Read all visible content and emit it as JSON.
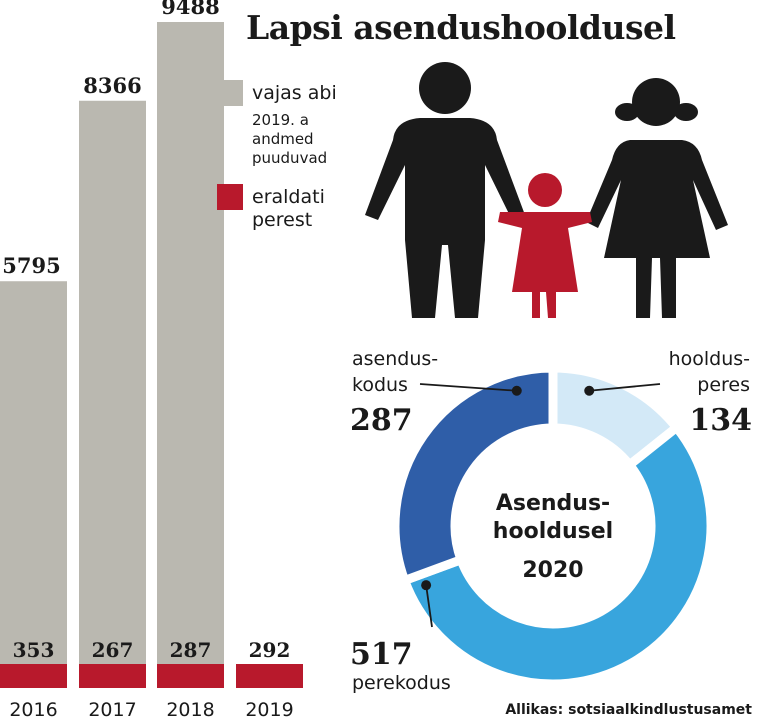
{
  "title": "Lapsi asendushooldusel",
  "legend": {
    "need_help": {
      "label": "vajas abi",
      "note": "2019. a andmed puuduvad",
      "color": "#bab8b0"
    },
    "removed": {
      "label": "eraldati perest",
      "color": "#b8192c"
    }
  },
  "source": "Allikas: sotsiaalkindlustusamet",
  "chart_data": [
    {
      "type": "bar",
      "categories": [
        "2016",
        "2017",
        "2018",
        "2019"
      ],
      "series": [
        {
          "name": "vajas abi",
          "values": [
            5795,
            8366,
            9488,
            null
          ],
          "color": "#bab8b0"
        },
        {
          "name": "eraldati perest",
          "values": [
            353,
            267,
            287,
            292
          ],
          "color": "#b8192c"
        }
      ]
    },
    {
      "type": "pie",
      "title": "Asendus-hooldusel",
      "subtitle": "2020",
      "slices": [
        {
          "label_line1": "hooldus-",
          "label_line2": "peres",
          "value": 134,
          "color": "#d3e9f7"
        },
        {
          "label_line1": "",
          "label_line2": "perekodus",
          "value": 517,
          "color": "#38a5dd"
        },
        {
          "label_line1": "asendus-",
          "label_line2": "kodus",
          "value": 287,
          "color": "#2f5ea8"
        }
      ]
    }
  ]
}
